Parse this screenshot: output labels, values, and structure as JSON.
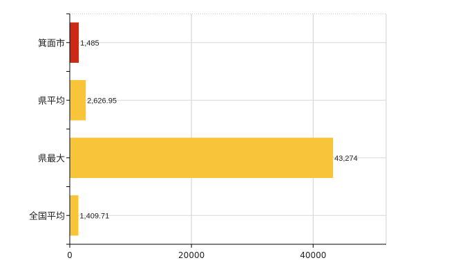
{
  "chart_data": {
    "type": "bar",
    "orientation": "horizontal",
    "categories": [
      "箕面市",
      "県平均",
      "県最大",
      "全国平均"
    ],
    "values": [
      1485,
      2626.95,
      43274,
      1409.71
    ],
    "value_labels": [
      "1,485",
      "2,626.95",
      "43,274",
      "1,409.71"
    ],
    "bar_colors": [
      "#cc2a16",
      "#f8c53a",
      "#f8c53a",
      "#f8c53a"
    ],
    "xlim": [
      0,
      52000
    ],
    "xticks": [
      0,
      20000,
      40000
    ],
    "xtick_labels": [
      "0",
      "20000",
      "40000"
    ],
    "title": "",
    "xlabel": "",
    "ylabel": "",
    "grid": true,
    "legend": "none"
  }
}
